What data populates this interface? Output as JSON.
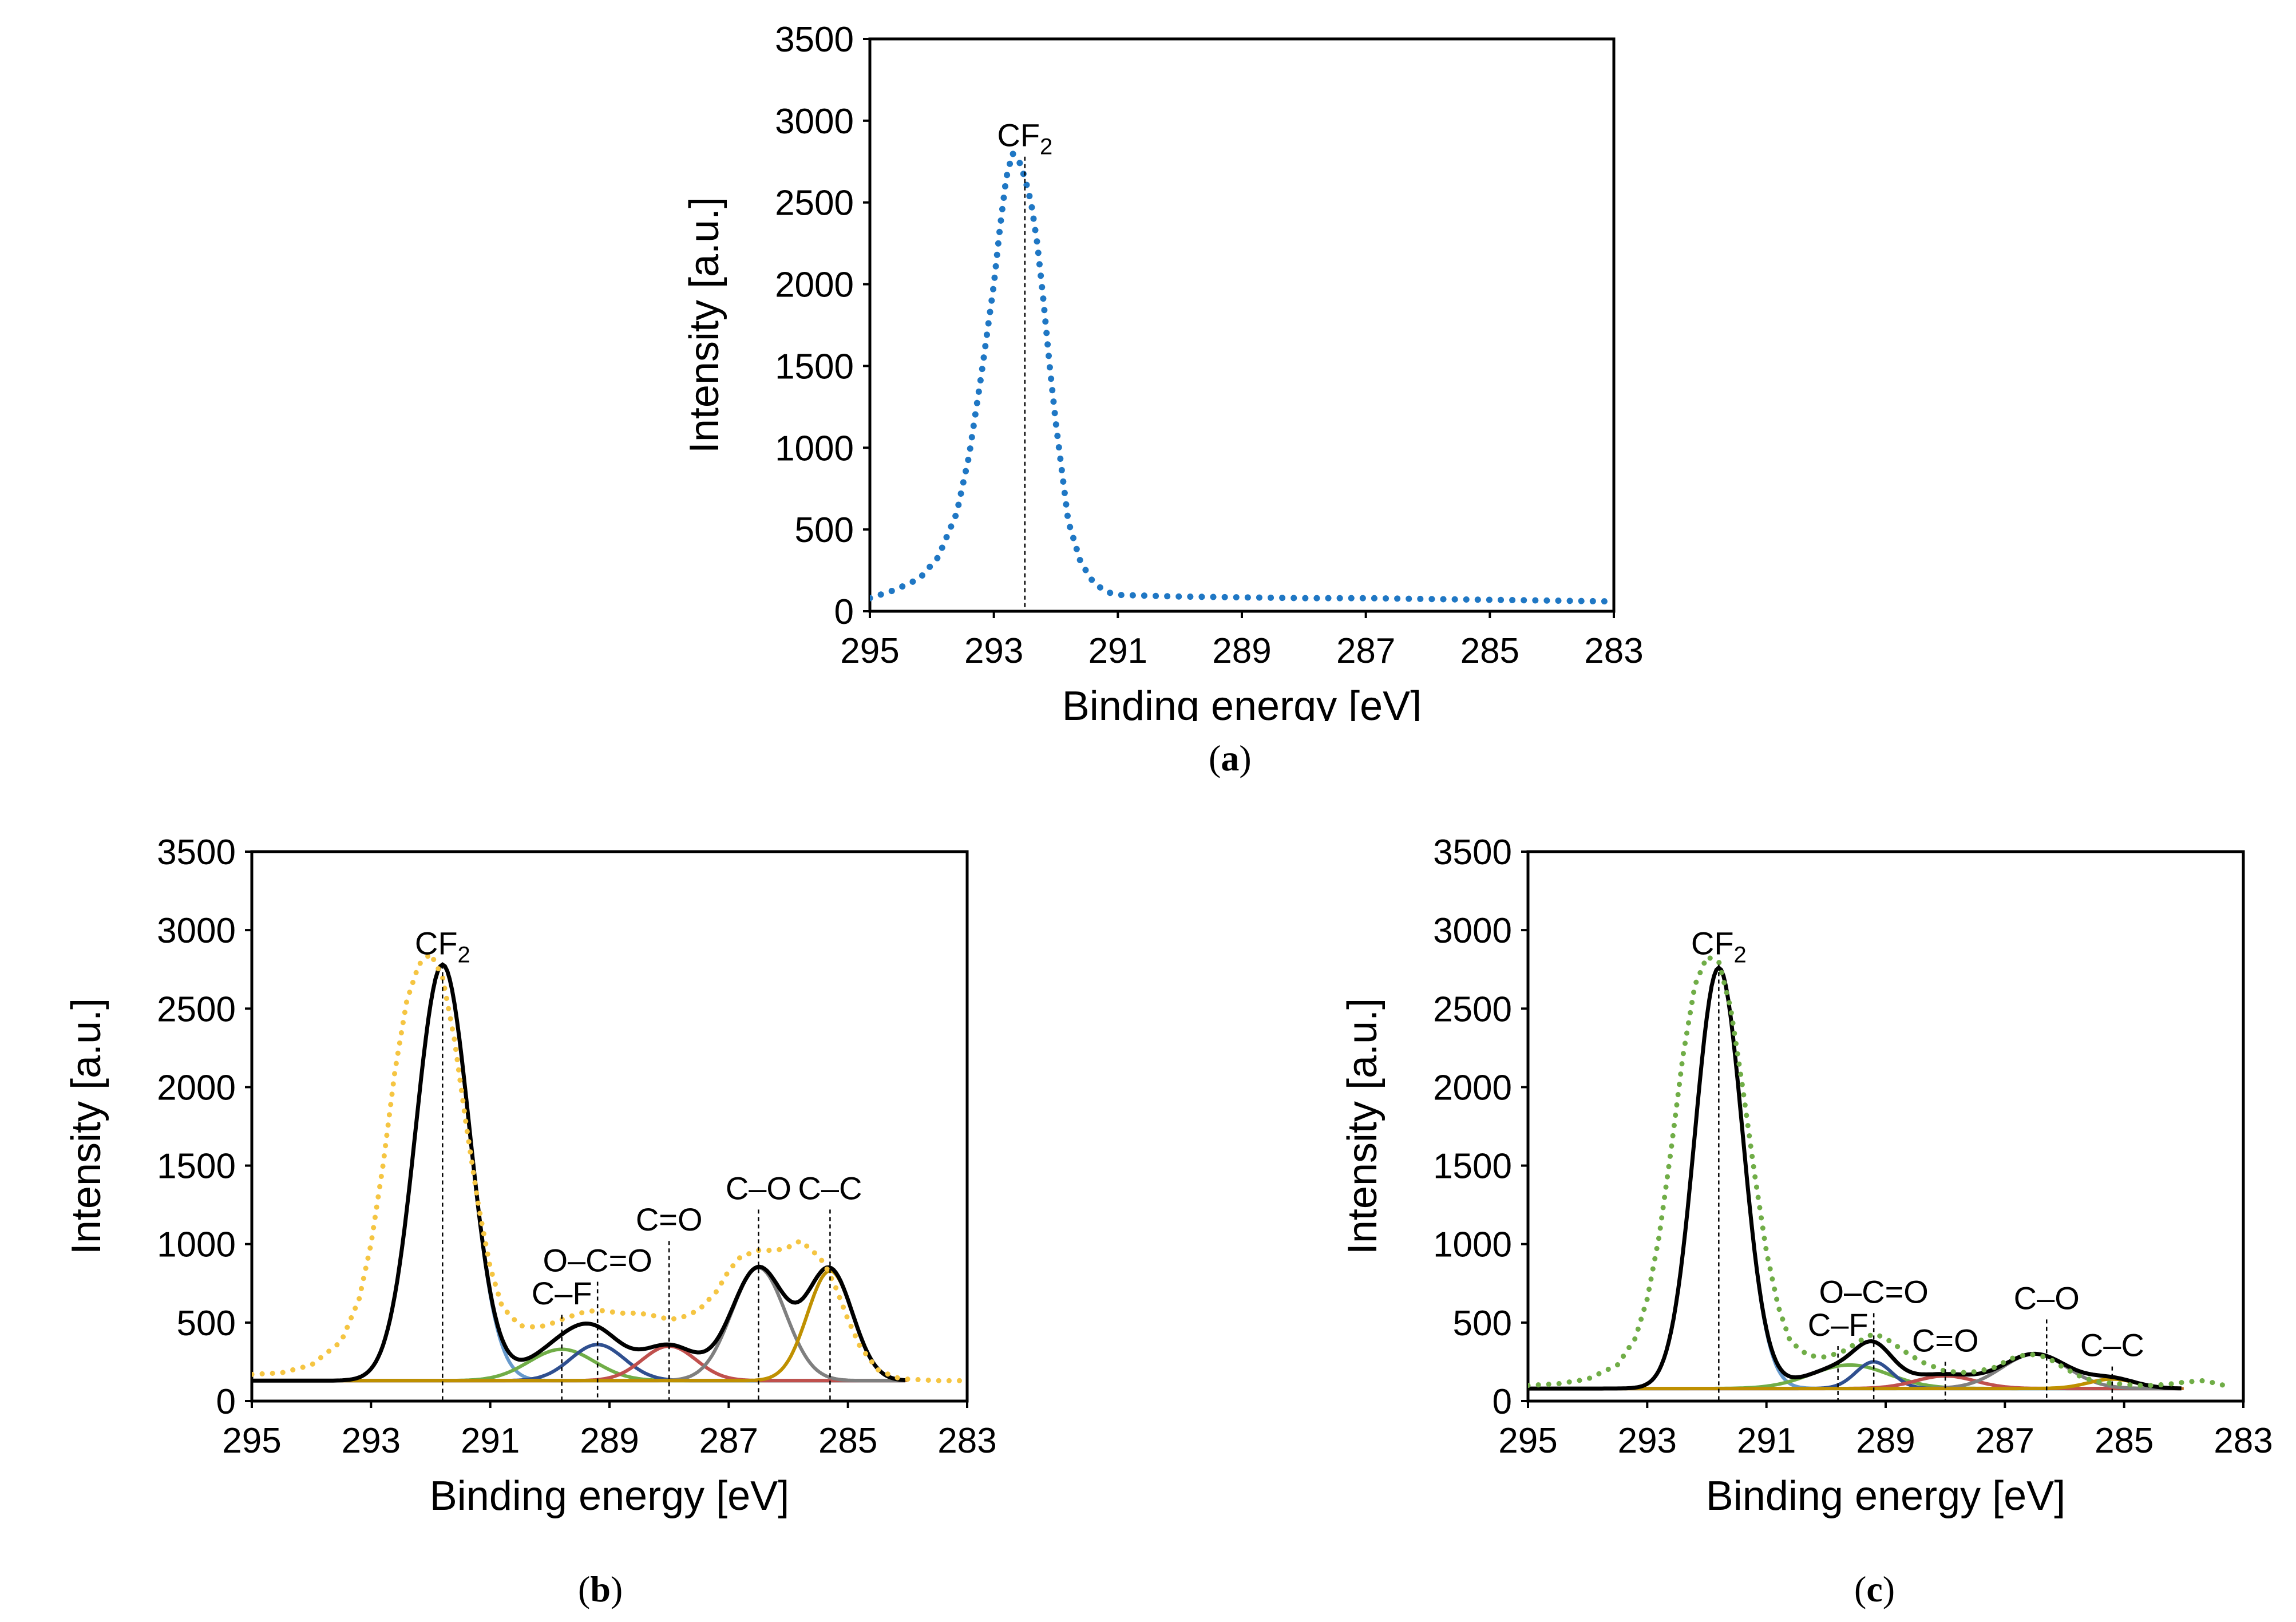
{
  "chart_data": [
    {
      "id": "a",
      "type": "line",
      "caption_letter": "a",
      "xlabel": "Binding energy [eV]",
      "ylabel": "Intensity [a.u.]",
      "xlim": [
        295,
        283
      ],
      "ylim": [
        0,
        3500
      ],
      "xticks": [
        "295",
        "293",
        "291",
        "289",
        "287",
        "285",
        "283"
      ],
      "yticks": [
        "0",
        "500",
        "1000",
        "1500",
        "2000",
        "2500",
        "3000",
        "3500"
      ],
      "peak_labels": [
        {
          "text": "CF",
          "sub": "2",
          "x": 292.5,
          "line_top": 2780
        }
      ],
      "series": [
        {
          "name": "measured",
          "style": "dotted",
          "color": "#1f77c4",
          "x": [
            295,
            294.6,
            294.2,
            293.9,
            293.6,
            293.4,
            293.2,
            293.0,
            292.9,
            292.8,
            292.7,
            292.6,
            292.5,
            292.4,
            292.3,
            292.2,
            292.1,
            292.0,
            291.9,
            291.8,
            291.6,
            291.4,
            291.2,
            291.0,
            290.5,
            290.0,
            289.0,
            288.0,
            287.0,
            286.0,
            285.0,
            284.0,
            283.0
          ],
          "y": [
            80,
            130,
            200,
            330,
            600,
            950,
            1450,
            2000,
            2350,
            2650,
            2800,
            2760,
            2650,
            2500,
            2250,
            1900,
            1500,
            1150,
            850,
            550,
            300,
            180,
            120,
            100,
            95,
            90,
            85,
            80,
            80,
            75,
            70,
            65,
            60
          ]
        }
      ]
    },
    {
      "id": "b",
      "type": "line",
      "caption_letter": "b",
      "xlabel": "Binding energy [eV]",
      "ylabel": "Intensity [a.u.]",
      "xlim": [
        295,
        283
      ],
      "ylim": [
        0,
        3500
      ],
      "xticks": [
        "295",
        "293",
        "291",
        "289",
        "287",
        "285",
        "283"
      ],
      "yticks": [
        "0",
        "500",
        "1000",
        "1500",
        "2000",
        "2500",
        "3000",
        "3500"
      ],
      "baseline": 130,
      "peak_labels": [
        {
          "text": "CF",
          "sub": "2",
          "x": 291.8,
          "line_top": 2780
        },
        {
          "text": "C–F",
          "sub": "",
          "x": 289.8,
          "line_top": 550
        },
        {
          "text": "O–C=O",
          "sub": "",
          "x": 289.2,
          "line_top": 760
        },
        {
          "text": "C=O",
          "sub": "",
          "x": 288.0,
          "line_top": 1020
        },
        {
          "text": "C–O",
          "sub": "",
          "x": 286.5,
          "line_top": 1220
        },
        {
          "text": "C–C",
          "sub": "",
          "x": 285.3,
          "line_top": 1220
        }
      ],
      "components": [
        {
          "name": "CF2",
          "color": "#6699cc",
          "center": 291.8,
          "amp": 2650,
          "sigma": 0.45
        },
        {
          "name": "C-F",
          "color": "#70ad47",
          "center": 289.8,
          "amp": 200,
          "sigma": 0.55
        },
        {
          "name": "O-C=O",
          "color": "#2f4f8f",
          "center": 289.2,
          "amp": 230,
          "sigma": 0.45
        },
        {
          "name": "C=O",
          "color": "#c0504d",
          "center": 288.0,
          "amp": 220,
          "sigma": 0.45
        },
        {
          "name": "C-O",
          "color": "#7f7f7f",
          "center": 286.5,
          "amp": 720,
          "sigma": 0.45
        },
        {
          "name": "C-C",
          "color": "#bf9000",
          "center": 285.3,
          "amp": 700,
          "sigma": 0.38
        }
      ],
      "baseline_color": "#b5651d",
      "envelope_color": "#000000",
      "measured": {
        "name": "measured",
        "color": "#f5c542",
        "x": [
          295,
          294.5,
          294,
          293.5,
          293.2,
          293.0,
          292.8,
          292.6,
          292.4,
          292.2,
          292.0,
          291.8,
          291.6,
          291.4,
          291.2,
          291.0,
          290.8,
          290.5,
          290.2,
          290.0,
          289.8,
          289.5,
          289.2,
          289.0,
          288.8,
          288.5,
          288.2,
          288.0,
          287.8,
          287.5,
          287.2,
          287.0,
          286.8,
          286.5,
          286.2,
          286.0,
          285.8,
          285.6,
          285.4,
          285.2,
          285.0,
          284.8,
          284.5,
          284.2,
          284.0,
          283.5,
          283.0
        ],
        "y": [
          170,
          180,
          230,
          380,
          650,
          1000,
          1500,
          2100,
          2550,
          2780,
          2850,
          2700,
          2300,
          1750,
          1250,
          850,
          600,
          480,
          470,
          490,
          520,
          560,
          580,
          570,
          560,
          560,
          540,
          520,
          530,
          580,
          700,
          830,
          920,
          960,
          960,
          980,
          1020,
          960,
          880,
          720,
          520,
          350,
          200,
          150,
          140,
          130,
          130
        ]
      }
    },
    {
      "id": "c",
      "type": "line",
      "caption_letter": "c",
      "xlabel": "Binding energy [eV]",
      "ylabel": "Intensity [a.u.]",
      "xlim": [
        295,
        283
      ],
      "ylim": [
        0,
        3500
      ],
      "xticks": [
        "295",
        "293",
        "291",
        "289",
        "287",
        "285",
        "283"
      ],
      "yticks": [
        "0",
        "500",
        "1000",
        "1500",
        "2000",
        "2500",
        "3000",
        "3500"
      ],
      "baseline": 80,
      "peak_labels": [
        {
          "text": "CF",
          "sub": "2",
          "x": 291.8,
          "line_top": 2780
        },
        {
          "text": "C–F",
          "sub": "",
          "x": 289.8,
          "line_top": 350
        },
        {
          "text": "O–C=O",
          "sub": "",
          "x": 289.2,
          "line_top": 560
        },
        {
          "text": "C=O",
          "sub": "",
          "x": 288.0,
          "line_top": 250
        },
        {
          "text": "C–O",
          "sub": "",
          "x": 286.3,
          "line_top": 520
        },
        {
          "text": "C–C",
          "sub": "",
          "x": 285.2,
          "line_top": 220
        }
      ],
      "components": [
        {
          "name": "CF2",
          "color": "#6699cc",
          "center": 291.8,
          "amp": 2680,
          "sigma": 0.4
        },
        {
          "name": "C-F",
          "color": "#70ad47",
          "center": 289.6,
          "amp": 150,
          "sigma": 0.65
        },
        {
          "name": "O-C=O",
          "color": "#2f4f8f",
          "center": 289.2,
          "amp": 170,
          "sigma": 0.3
        },
        {
          "name": "C=O",
          "color": "#c0504d",
          "center": 288.0,
          "amp": 80,
          "sigma": 0.5
        },
        {
          "name": "C-O",
          "color": "#7f7f7f",
          "center": 286.5,
          "amp": 220,
          "sigma": 0.55
        },
        {
          "name": "C-C",
          "color": "#bf9000",
          "center": 285.2,
          "amp": 60,
          "sigma": 0.4
        }
      ],
      "baseline_color": "#b5651d",
      "envelope_color": "#000000",
      "measured": {
        "name": "measured",
        "color": "#70ad47",
        "x": [
          295,
          294.5,
          294,
          293.5,
          293.2,
          293.0,
          292.8,
          292.6,
          292.4,
          292.2,
          292.0,
          291.8,
          291.6,
          291.4,
          291.2,
          291.0,
          290.8,
          290.6,
          290.3,
          290.0,
          289.7,
          289.4,
          289.2,
          289.0,
          288.7,
          288.4,
          288.0,
          287.6,
          287.2,
          286.9,
          286.6,
          286.3,
          286.0,
          285.7,
          285.4,
          285.1,
          284.8,
          284.5,
          284.2,
          284.0,
          283.7,
          283.4,
          283.2
        ],
        "y": [
          100,
          110,
          140,
          230,
          400,
          650,
          1050,
          1600,
          2200,
          2650,
          2830,
          2800,
          2500,
          2000,
          1450,
          950,
          600,
          380,
          290,
          280,
          320,
          390,
          430,
          400,
          320,
          250,
          190,
          180,
          210,
          270,
          300,
          280,
          210,
          150,
          120,
          110,
          100,
          100,
          110,
          120,
          130,
          110,
          80
        ]
      }
    }
  ]
}
